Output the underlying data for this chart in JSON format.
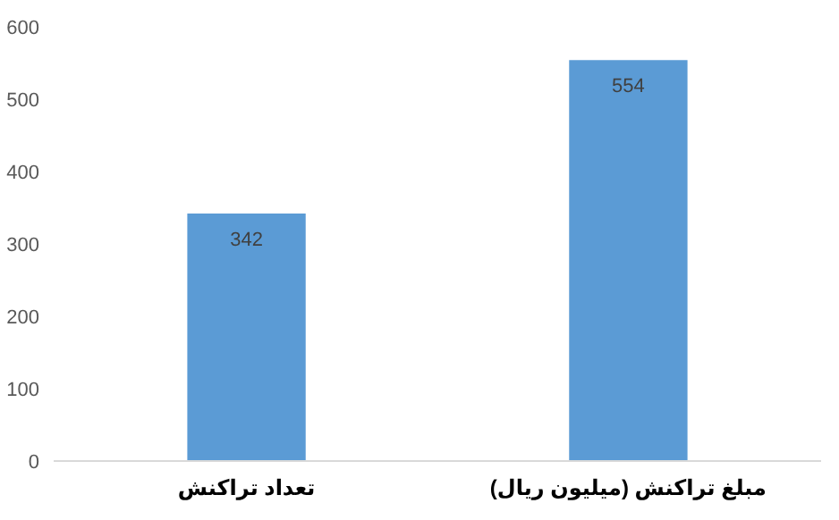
{
  "chart_data": {
    "type": "bar",
    "categories": [
      "تعداد تراکنش",
      "مبلغ تراکنش (میلیون ریال)"
    ],
    "values": [
      342,
      554
    ],
    "color": "#5b9bd5",
    "ylim": [
      0,
      600
    ],
    "yticks": [
      0,
      100,
      200,
      300,
      400,
      500,
      600
    ],
    "data_labels": true
  }
}
